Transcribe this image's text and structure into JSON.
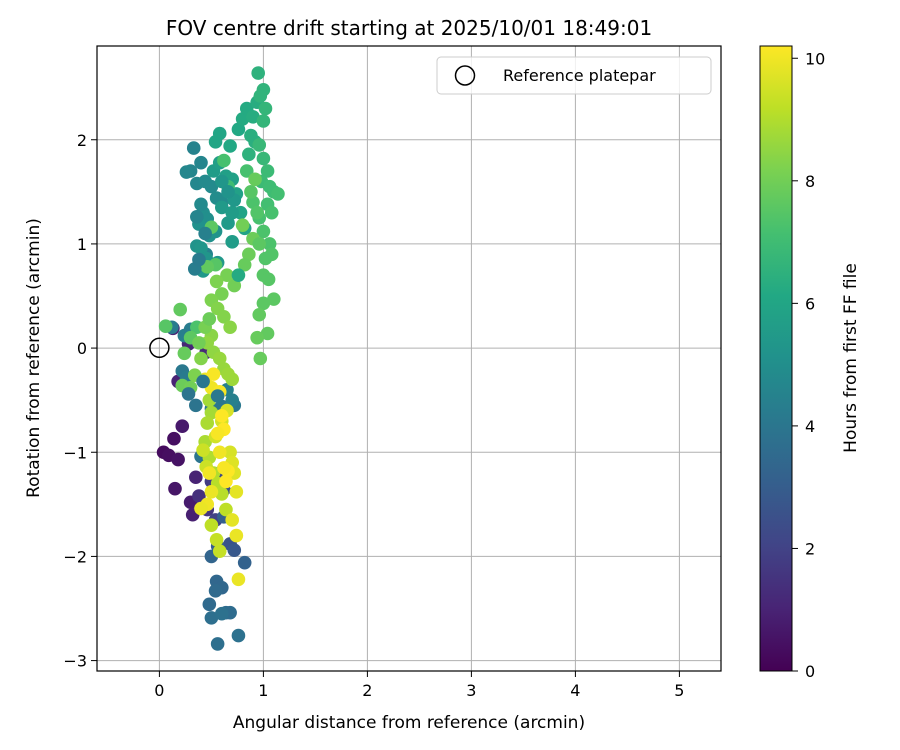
{
  "chart_data": {
    "type": "scatter",
    "title": "FOV centre drift starting at 2025/10/01 18:49:01",
    "xlabel": "Angular distance from reference (arcmin)",
    "ylabel": "Rotation from reference (arcmin)",
    "xlim": [
      -0.6,
      5.4
    ],
    "ylim": [
      -3.1,
      2.9
    ],
    "xticks": [
      0,
      1,
      2,
      3,
      4,
      5
    ],
    "yticks": [
      -3,
      -2,
      -1,
      0,
      1,
      2
    ],
    "grid": true,
    "legend": {
      "position": "top-right",
      "entries": [
        "Reference platepar"
      ]
    },
    "reference_point": {
      "x": 0,
      "y": 0,
      "label": "Reference platepar"
    },
    "colorbar": {
      "label": "Hours from first FF file",
      "range": [
        0,
        10.2
      ],
      "ticks": [
        0,
        2,
        4,
        6,
        8,
        10
      ],
      "colormap": "viridis"
    },
    "points": [
      [
        0.04,
        -1.0,
        0.3
      ],
      [
        0.09,
        -1.03,
        0.4
      ],
      [
        0.14,
        -0.87,
        0.4
      ],
      [
        0.18,
        -1.07,
        0.5
      ],
      [
        0.15,
        -1.35,
        0.6
      ],
      [
        0.22,
        -0.75,
        0.7
      ],
      [
        0.3,
        -1.48,
        0.8
      ],
      [
        0.32,
        -1.6,
        0.9
      ],
      [
        0.35,
        -1.24,
        1.0
      ],
      [
        0.18,
        -0.32,
        1.0
      ],
      [
        0.28,
        0.04,
        1.1
      ],
      [
        0.13,
        0.19,
        1.1
      ],
      [
        0.45,
        -0.04,
        1.2
      ],
      [
        0.38,
        -1.42,
        1.4
      ],
      [
        0.46,
        -1.55,
        1.6
      ],
      [
        0.5,
        -1.28,
        1.8
      ],
      [
        0.54,
        -1.65,
        2.0
      ],
      [
        0.58,
        -1.2,
        2.2
      ],
      [
        0.62,
        -1.36,
        2.5
      ],
      [
        0.68,
        -1.88,
        2.6
      ],
      [
        0.72,
        -1.94,
        2.8
      ],
      [
        0.56,
        -1.9,
        3.0
      ],
      [
        0.62,
        -1.62,
        3.1
      ],
      [
        0.82,
        -2.06,
        3.2
      ],
      [
        0.5,
        -2.0,
        3.3
      ],
      [
        0.55,
        -2.24,
        3.4
      ],
      [
        0.6,
        -2.3,
        3.4
      ],
      [
        0.54,
        -2.33,
        3.5
      ],
      [
        0.48,
        -2.46,
        3.5
      ],
      [
        0.64,
        -2.54,
        3.6
      ],
      [
        0.68,
        -2.54,
        3.6
      ],
      [
        0.5,
        -2.59,
        3.7
      ],
      [
        0.56,
        -2.84,
        3.7
      ],
      [
        0.76,
        -2.76,
        3.8
      ],
      [
        0.6,
        -2.55,
        3.8
      ],
      [
        0.4,
        -1.04,
        3.9
      ],
      [
        0.35,
        -0.55,
        3.9
      ],
      [
        0.5,
        -0.58,
        4.0
      ],
      [
        0.6,
        -0.56,
        4.0
      ],
      [
        0.72,
        -0.55,
        4.1
      ],
      [
        0.22,
        -0.22,
        4.1
      ],
      [
        0.26,
        -0.28,
        4.2
      ],
      [
        0.12,
        0.2,
        4.2
      ],
      [
        0.24,
        0.12,
        4.3
      ],
      [
        0.3,
        0.18,
        4.3
      ],
      [
        0.65,
        -0.4,
        4.4
      ],
      [
        0.7,
        -0.5,
        4.4
      ],
      [
        0.45,
        0.9,
        4.5
      ],
      [
        0.33,
        1.92,
        4.5
      ],
      [
        0.4,
        1.78,
        4.6
      ],
      [
        0.3,
        1.7,
        4.6
      ],
      [
        0.26,
        1.69,
        4.7
      ],
      [
        0.36,
        1.58,
        4.7
      ],
      [
        0.44,
        1.6,
        4.8
      ],
      [
        0.5,
        1.55,
        4.8
      ],
      [
        0.55,
        1.44,
        4.9
      ],
      [
        0.6,
        1.4,
        4.9
      ],
      [
        0.42,
        1.3,
        5.0
      ],
      [
        0.46,
        1.24,
        5.0
      ],
      [
        0.38,
        1.19,
        5.1
      ],
      [
        0.48,
        1.08,
        5.1
      ],
      [
        0.54,
        1.12,
        5.2
      ],
      [
        0.36,
        0.98,
        5.2
      ],
      [
        0.4,
        0.96,
        5.3
      ],
      [
        0.45,
        0.86,
        5.3
      ],
      [
        0.56,
        0.82,
        5.4
      ],
      [
        0.42,
        0.74,
        5.4
      ],
      [
        0.6,
        1.35,
        5.5
      ],
      [
        0.66,
        1.2,
        5.5
      ],
      [
        0.7,
        1.02,
        5.6
      ],
      [
        0.52,
        1.7,
        5.6
      ],
      [
        0.58,
        1.78,
        5.7
      ],
      [
        0.64,
        1.65,
        5.7
      ],
      [
        0.7,
        1.62,
        5.8
      ],
      [
        0.74,
        1.48,
        5.8
      ],
      [
        0.78,
        1.3,
        5.9
      ],
      [
        0.82,
        1.15,
        5.9
      ],
      [
        0.54,
        1.98,
        6.0
      ],
      [
        0.58,
        2.06,
        6.0
      ],
      [
        0.68,
        1.94,
        6.1
      ],
      [
        0.76,
        2.1,
        6.1
      ],
      [
        0.8,
        2.2,
        6.2
      ],
      [
        0.84,
        2.3,
        6.2
      ],
      [
        0.9,
        2.22,
        6.3
      ],
      [
        0.94,
        2.36,
        6.3
      ],
      [
        0.88,
        2.04,
        6.4
      ],
      [
        0.92,
        1.98,
        6.4
      ],
      [
        0.86,
        1.86,
        6.5
      ],
      [
        0.95,
        2.64,
        6.5
      ],
      [
        1.0,
        2.48,
        6.6
      ],
      [
        0.97,
        2.42,
        6.6
      ],
      [
        1.02,
        2.3,
        6.7
      ],
      [
        1.0,
        2.18,
        6.7
      ],
      [
        0.96,
        1.95,
        6.8
      ],
      [
        1.0,
        1.82,
        6.8
      ],
      [
        1.04,
        1.7,
        6.9
      ],
      [
        0.98,
        1.6,
        6.9
      ],
      [
        1.06,
        1.55,
        7.0
      ],
      [
        1.1,
        1.5,
        7.0
      ],
      [
        1.14,
        1.48,
        7.1
      ],
      [
        1.04,
        1.38,
        7.1
      ],
      [
        1.08,
        1.3,
        7.2
      ],
      [
        0.96,
        1.25,
        7.2
      ],
      [
        1.0,
        1.12,
        7.3
      ],
      [
        1.06,
        1.0,
        7.3
      ],
      [
        1.08,
        0.9,
        7.4
      ],
      [
        1.02,
        0.86,
        7.4
      ],
      [
        1.0,
        0.7,
        7.5
      ],
      [
        1.05,
        0.66,
        7.5
      ],
      [
        1.1,
        0.47,
        7.6
      ],
      [
        1.0,
        0.43,
        7.6
      ],
      [
        0.96,
        0.32,
        7.7
      ],
      [
        1.04,
        0.14,
        7.7
      ],
      [
        0.94,
        0.1,
        7.8
      ],
      [
        0.97,
        -0.1,
        7.8
      ],
      [
        0.9,
        1.05,
        7.9
      ],
      [
        0.86,
        0.9,
        7.9
      ],
      [
        0.8,
        1.18,
        8.0
      ],
      [
        0.72,
        0.6,
        8.0
      ],
      [
        0.65,
        0.7,
        8.1
      ],
      [
        0.6,
        0.52,
        8.1
      ],
      [
        0.55,
        0.64,
        8.2
      ],
      [
        0.5,
        0.46,
        8.2
      ],
      [
        0.56,
        0.38,
        8.3
      ],
      [
        0.62,
        0.3,
        8.3
      ],
      [
        0.68,
        0.2,
        8.4
      ],
      [
        0.5,
        0.12,
        8.4
      ],
      [
        0.46,
        0.05,
        8.5
      ],
      [
        0.52,
        -0.04,
        8.5
      ],
      [
        0.58,
        -0.1,
        8.6
      ],
      [
        0.62,
        -0.2,
        8.6
      ],
      [
        0.66,
        -0.25,
        8.7
      ],
      [
        0.7,
        -0.3,
        8.7
      ],
      [
        0.48,
        -0.5,
        8.8
      ],
      [
        0.5,
        -0.62,
        8.8
      ],
      [
        0.46,
        -0.72,
        8.9
      ],
      [
        0.44,
        -0.9,
        8.9
      ],
      [
        0.48,
        -1.05,
        9.0
      ],
      [
        0.52,
        -1.2,
        9.0
      ],
      [
        0.56,
        -1.3,
        9.1
      ],
      [
        0.6,
        -1.4,
        9.1
      ],
      [
        0.64,
        -1.55,
        9.2
      ],
      [
        0.5,
        -1.7,
        9.2
      ],
      [
        0.55,
        -1.84,
        9.3
      ],
      [
        0.58,
        -1.95,
        9.3
      ],
      [
        0.42,
        -0.98,
        9.4
      ],
      [
        0.45,
        -1.14,
        9.4
      ],
      [
        0.54,
        -0.85,
        9.5
      ],
      [
        0.6,
        -0.7,
        9.5
      ],
      [
        0.65,
        -0.6,
        9.6
      ],
      [
        0.68,
        -1.0,
        9.6
      ],
      [
        0.7,
        -1.1,
        9.7
      ],
      [
        0.72,
        -1.2,
        9.7
      ],
      [
        0.74,
        -1.38,
        9.8
      ],
      [
        0.7,
        -1.65,
        9.8
      ],
      [
        0.74,
        -1.8,
        9.9
      ],
      [
        0.76,
        -2.22,
        9.9
      ],
      [
        0.44,
        -0.3,
        10.0
      ],
      [
        0.5,
        -0.38,
        10.0
      ],
      [
        0.52,
        -0.25,
        10.1
      ],
      [
        0.58,
        -0.42,
        10.1
      ],
      [
        0.6,
        -0.65,
        10.2
      ],
      [
        0.62,
        -0.78,
        10.2
      ],
      [
        0.66,
        -1.18,
        10.2
      ],
      [
        0.64,
        -1.28,
        10.2
      ],
      [
        0.56,
        -0.82,
        10.1
      ],
      [
        0.48,
        -1.2,
        10.0
      ],
      [
        0.58,
        -1.0,
        10.0
      ],
      [
        0.62,
        -1.15,
        10.1
      ],
      [
        0.46,
        -1.5,
        10.0
      ],
      [
        0.5,
        -1.38,
        9.9
      ],
      [
        0.4,
        -1.54,
        9.9
      ],
      [
        0.36,
        0.2,
        7.3
      ],
      [
        0.3,
        0.1,
        7.6
      ],
      [
        0.24,
        -0.05,
        7.8
      ],
      [
        0.2,
        0.37,
        7.7
      ],
      [
        0.06,
        0.21,
        7.5
      ],
      [
        0.22,
        -0.36,
        7.9
      ],
      [
        0.3,
        -0.38,
        8.0
      ],
      [
        0.34,
        -0.26,
        8.2
      ],
      [
        0.4,
        -0.1,
        8.3
      ],
      [
        0.38,
        0.05,
        8.0
      ],
      [
        0.44,
        0.2,
        8.1
      ],
      [
        0.48,
        0.28,
        7.9
      ],
      [
        0.5,
        1.16,
        7.6
      ],
      [
        0.54,
        0.8,
        7.5
      ],
      [
        0.46,
        0.78,
        7.7
      ],
      [
        0.62,
        1.8,
        7.2
      ],
      [
        0.66,
        1.55,
        7.0
      ],
      [
        0.84,
        1.7,
        7.2
      ],
      [
        0.9,
        1.4,
        7.3
      ],
      [
        0.94,
        1.3,
        7.4
      ],
      [
        0.88,
        1.5,
        7.5
      ],
      [
        0.92,
        1.62,
        7.8
      ],
      [
        0.96,
        1.0,
        7.6
      ],
      [
        0.82,
        0.8,
        7.8
      ],
      [
        0.76,
        0.7,
        6.2
      ],
      [
        0.7,
        1.3,
        5.6
      ],
      [
        0.72,
        1.42,
        5.4
      ],
      [
        0.6,
        1.6,
        5.3
      ],
      [
        0.66,
        1.5,
        5.2
      ],
      [
        0.4,
        1.38,
        4.8
      ],
      [
        0.36,
        1.26,
        4.6
      ],
      [
        0.44,
        1.1,
        4.4
      ],
      [
        0.34,
        0.76,
        4.3
      ],
      [
        0.38,
        0.85,
        4.2
      ],
      [
        0.28,
        -0.44,
        3.9
      ],
      [
        0.42,
        -0.32,
        4.0
      ],
      [
        0.56,
        -0.46,
        4.1
      ]
    ]
  }
}
